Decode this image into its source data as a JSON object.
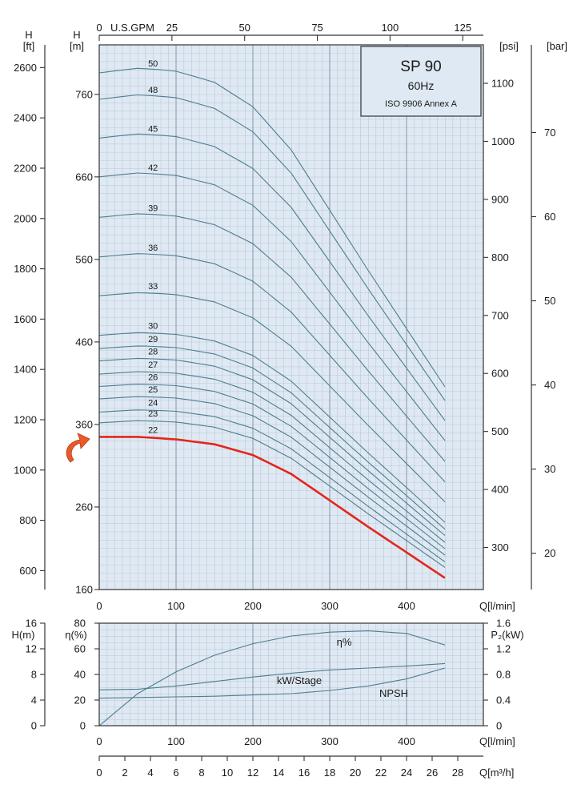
{
  "chart_data": [
    {
      "type": "line",
      "title": "SP 90",
      "subtitle": "60Hz",
      "standard": "ISO 9906 Annex A",
      "x_label": "Q[l/min]",
      "x_range": [
        0,
        500
      ],
      "x_ticks": [
        0,
        100,
        200,
        300,
        400
      ],
      "top_axis": {
        "label": "U.S.GPM",
        "ticks": [
          0,
          25,
          50,
          75,
          100,
          125
        ]
      },
      "y_left_m": {
        "label_top": "H",
        "label_unit": "[m]",
        "range": [
          160,
          820
        ],
        "ticks": [
          160,
          260,
          360,
          460,
          560,
          660,
          760
        ]
      },
      "y_left_ft": {
        "label_top": "H",
        "label_unit": "[ft]",
        "ticks": [
          600,
          800,
          1000,
          1200,
          1400,
          1600,
          1800,
          2000,
          2200,
          2400,
          2600
        ]
      },
      "y_right_psi": {
        "label": "[psi]",
        "ticks": [
          300,
          400,
          500,
          600,
          700,
          800,
          900,
          1000,
          1100
        ]
      },
      "y_right_bar": {
        "label": "[bar]",
        "ticks": [
          20,
          30,
          40,
          50,
          60,
          70
        ]
      },
      "highlighted_stage": "22",
      "series": [
        {
          "name": "22",
          "h0": 345,
          "q": [
            0,
            50,
            100,
            150,
            200,
            250,
            300,
            350,
            400,
            450
          ],
          "h": [
            345,
            345,
            342,
            336,
            323,
            300,
            268,
            236,
            205,
            174
          ]
        },
        {
          "name": "23",
          "h0": 362
        },
        {
          "name": "24",
          "h0": 375
        },
        {
          "name": "25",
          "h0": 391
        },
        {
          "name": "26",
          "h0": 406
        },
        {
          "name": "27",
          "h0": 421
        },
        {
          "name": "28",
          "h0": 437
        },
        {
          "name": "29",
          "h0": 452
        },
        {
          "name": "30",
          "h0": 468
        },
        {
          "name": "33",
          "h0": 516
        },
        {
          "name": "36",
          "h0": 563
        },
        {
          "name": "39",
          "h0": 611
        },
        {
          "name": "42",
          "h0": 660
        },
        {
          "name": "45",
          "h0": 707
        },
        {
          "name": "48",
          "h0": 754
        },
        {
          "name": "50",
          "h0": 786
        }
      ]
    },
    {
      "type": "line",
      "x_label": "Q[l/min]",
      "x_range": [
        0,
        500
      ],
      "x_ticks": [
        0,
        100,
        200,
        300,
        400
      ],
      "y_npsh": {
        "label": "H(m)",
        "ticks": [
          0,
          4,
          8,
          12,
          16
        ]
      },
      "y_eff": {
        "label": "η(%)",
        "range": [
          0,
          80
        ],
        "ticks": [
          0,
          20,
          40,
          60,
          80
        ]
      },
      "y_power": {
        "label": "P₂(kW)",
        "ticks": [
          0,
          0.4,
          0.8,
          1.2,
          1.6
        ]
      },
      "bottom_axis": {
        "label": "Q[m³/h]",
        "ticks": [
          0,
          2,
          4,
          6,
          8,
          10,
          12,
          14,
          16,
          18,
          20,
          22,
          24,
          26,
          28
        ]
      },
      "series": [
        {
          "name": "η%",
          "unit": "%",
          "q": [
            0,
            50,
            100,
            150,
            200,
            250,
            300,
            350,
            400,
            450
          ],
          "values": [
            0,
            25,
            42,
            55,
            64,
            70,
            73,
            74,
            72,
            63
          ]
        },
        {
          "name": "kW/Stage",
          "unit": "kW",
          "q": [
            0,
            50,
            100,
            150,
            200,
            250,
            300,
            350,
            400,
            450
          ],
          "values": [
            0.56,
            0.57,
            0.62,
            0.69,
            0.76,
            0.82,
            0.87,
            0.9,
            0.93,
            0.97
          ]
        },
        {
          "name": "NPSH",
          "unit": "m",
          "q": [
            0,
            50,
            100,
            150,
            200,
            250,
            300,
            350,
            400,
            450
          ],
          "values": [
            4.3,
            4.4,
            4.5,
            4.6,
            4.8,
            5.0,
            5.5,
            6.2,
            7.3,
            9.0
          ]
        }
      ]
    }
  ]
}
